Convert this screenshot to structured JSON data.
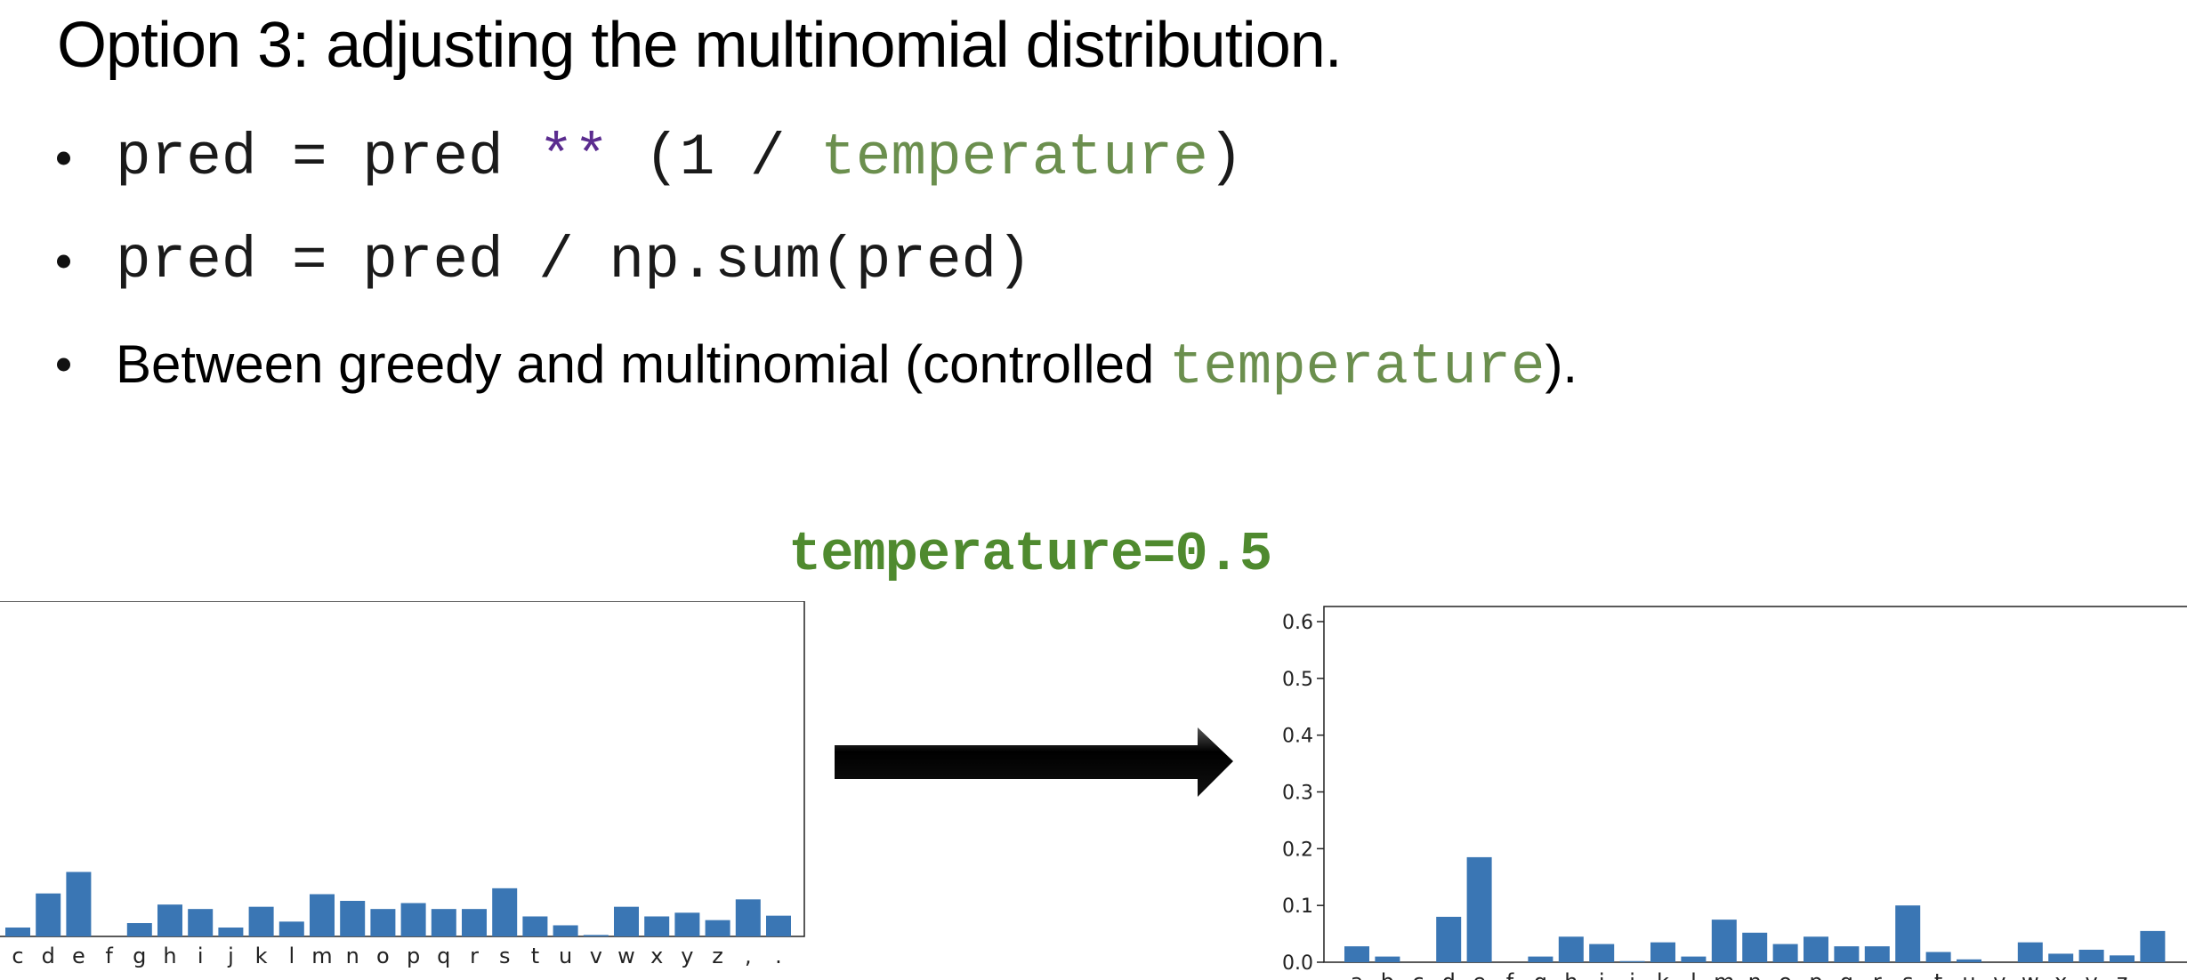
{
  "slide": {
    "title": "Option 3: adjusting the multinomial distribution.",
    "bullet1": {
      "c1": "pred = pred ",
      "c2": "**",
      "c3": " (1 / ",
      "c4": "temperature",
      "c5": ")"
    },
    "bullet2": {
      "c1": "pred = pred / np.sum(pred)"
    },
    "bullet3": {
      "t1": "Between greedy and multinomial (controlled ",
      "t2": "temperature",
      "t3": ")."
    },
    "temperature_label": "temperature=0.5"
  },
  "colors": {
    "bar": "#3a76b4",
    "green": "#6b8f4e",
    "purple": "#5b2c8f"
  },
  "chart_data": [
    {
      "type": "bar",
      "categories": [
        "c",
        "d",
        "e",
        "f",
        "g",
        "h",
        "i",
        "j",
        "k",
        "l",
        "m",
        "n",
        "o",
        "p",
        "q",
        "r",
        "s",
        "t",
        "u",
        "v",
        "w",
        "x",
        "y",
        "z",
        ",",
        "."
      ],
      "values": [
        0.012,
        0.058,
        0.087,
        0.0,
        0.018,
        0.043,
        0.037,
        0.012,
        0.04,
        0.02,
        0.057,
        0.048,
        0.037,
        0.045,
        0.037,
        0.037,
        0.065,
        0.027,
        0.015,
        0.002,
        0.04,
        0.027,
        0.032,
        0.022,
        0.05,
        0.028
      ],
      "ylim": [
        0,
        0.6
      ],
      "grid": false
    },
    {
      "type": "bar",
      "categories": [
        "a",
        "b",
        "c",
        "d",
        "e",
        "f",
        "g",
        "h",
        "i",
        "j",
        "k",
        "l",
        "m",
        "n",
        "o",
        "p",
        "q",
        "r",
        "s",
        "t",
        "u",
        "v",
        "w",
        "x",
        "y",
        "z",
        ","
      ],
      "values": [
        0.028,
        0.01,
        0.0,
        0.08,
        0.185,
        0.0,
        0.01,
        0.045,
        0.032,
        0.002,
        0.035,
        0.01,
        0.075,
        0.052,
        0.032,
        0.045,
        0.028,
        0.028,
        0.1,
        0.018,
        0.005,
        0.0,
        0.035,
        0.015,
        0.022,
        0.012,
        0.055
      ],
      "yticks": [
        "0.0",
        "0.1",
        "0.2",
        "0.3",
        "0.4",
        "0.5",
        "0.6"
      ],
      "ylim": [
        0,
        0.6
      ],
      "grid": false
    }
  ]
}
